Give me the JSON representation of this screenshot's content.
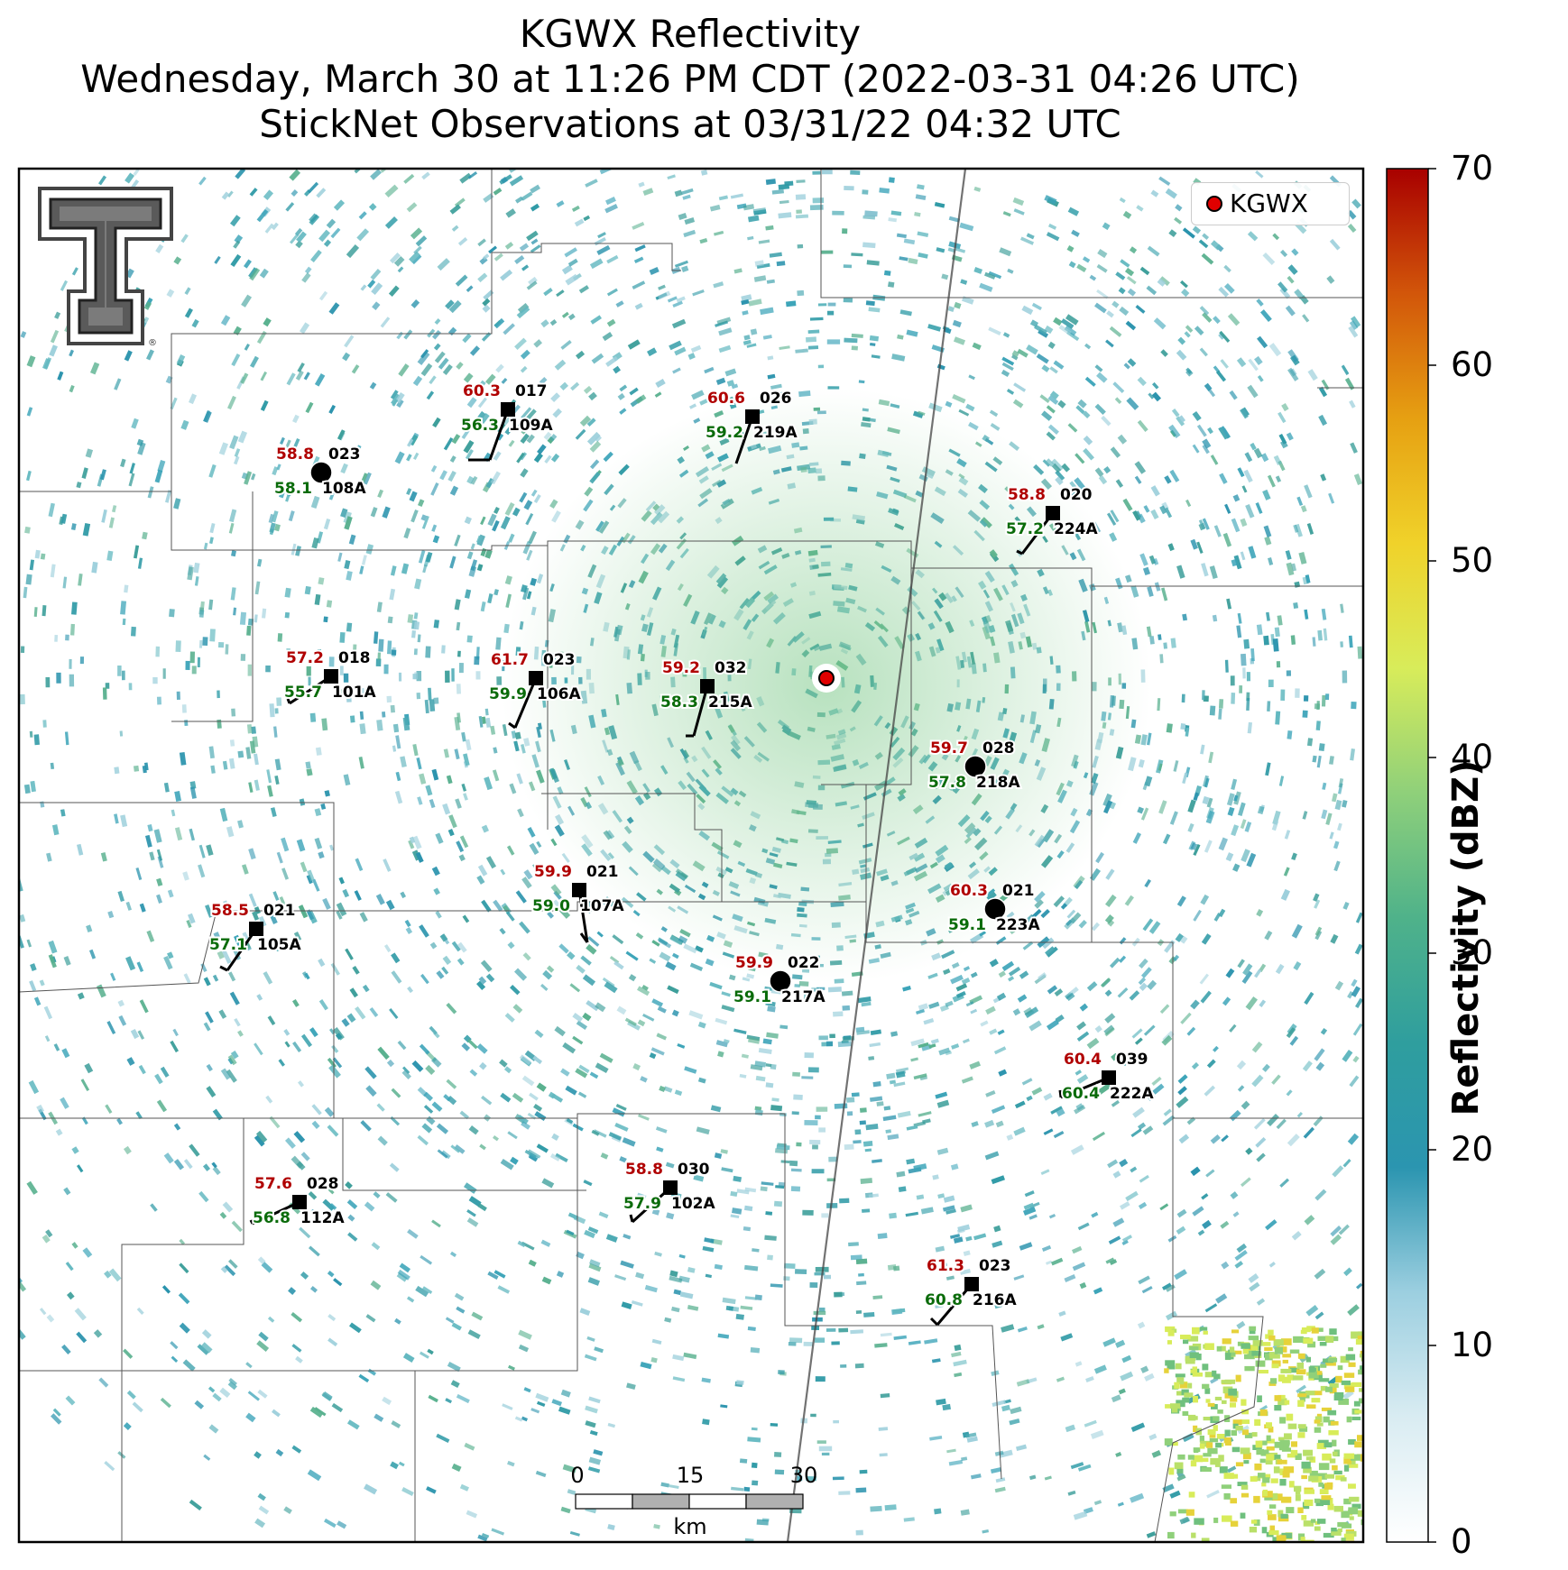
{
  "title": {
    "line1": "KGWX Reflectivity",
    "line2": "Wednesday, March 30 at 11:26 PM CDT (2022-03-31 04:26 UTC)",
    "line3": "StickNet Observations at 03/31/22 04:32 UTC"
  },
  "logo": {
    "name": "Texas Tech double-T logo"
  },
  "legend": {
    "label": "KGWX",
    "color": "#e00000"
  },
  "colorbar": {
    "label": "Reflectivity (dBZ)",
    "ticks": [
      "70",
      "60",
      "50",
      "40",
      "30",
      "20",
      "10",
      "0"
    ],
    "colors": [
      "#ffffff",
      "#d9ecf2",
      "#9ccfe0",
      "#2b95b0",
      "#2f9e9e",
      "#4fb28a",
      "#8fd07a",
      "#d8ec5a",
      "#f0d22a",
      "#e6a012",
      "#d2560a",
      "#a80000"
    ]
  },
  "scale_bar": {
    "ticks": [
      "0",
      "15",
      "30"
    ],
    "unit": "km"
  },
  "colors": {
    "temperature": "#b00000",
    "dewpoint": "#0a6b0a",
    "station": "#000000",
    "radar_echo": "#2e9fb0"
  },
  "stations": [
    {
      "id": "108A",
      "temp": "58.8",
      "dew": "58.1",
      "wind": "023",
      "marker": "circle",
      "calm": true
    },
    {
      "id": "109A",
      "temp": "60.3",
      "dew": "56.3",
      "wind": "017",
      "marker": "square",
      "calm": false
    },
    {
      "id": "219A",
      "temp": "60.6",
      "dew": "59.2",
      "wind": "026",
      "marker": "square",
      "calm": false
    },
    {
      "id": "224A",
      "temp": "58.8",
      "dew": "57.2",
      "wind": "020",
      "marker": "square",
      "calm": false
    },
    {
      "id": "101A",
      "temp": "57.2",
      "dew": "55.7",
      "wind": "018",
      "marker": "square",
      "calm": false
    },
    {
      "id": "106A",
      "temp": "61.7",
      "dew": "59.9",
      "wind": "023",
      "marker": "square",
      "calm": false
    },
    {
      "id": "215A",
      "temp": "59.2",
      "dew": "58.3",
      "wind": "032",
      "marker": "square",
      "calm": false
    },
    {
      "id": "218A",
      "temp": "59.7",
      "dew": "57.8",
      "wind": "028",
      "marker": "circle",
      "calm": true
    },
    {
      "id": "107A",
      "temp": "59.9",
      "dew": "59.0",
      "wind": "021",
      "marker": "square",
      "calm": false
    },
    {
      "id": "105A",
      "temp": "58.5",
      "dew": "57.1",
      "wind": "021",
      "marker": "square",
      "calm": false
    },
    {
      "id": "223A",
      "temp": "60.3",
      "dew": "59.1",
      "wind": "021",
      "marker": "circle",
      "calm": true
    },
    {
      "id": "217A",
      "temp": "59.9",
      "dew": "59.1",
      "wind": "022",
      "marker": "circle",
      "calm": true
    },
    {
      "id": "222A",
      "temp": "60.4",
      "dew": "60.4",
      "wind": "039",
      "marker": "square",
      "calm": false
    },
    {
      "id": "112A",
      "temp": "57.6",
      "dew": "56.8",
      "wind": "028",
      "marker": "square",
      "calm": false
    },
    {
      "id": "102A",
      "temp": "58.8",
      "dew": "57.9",
      "wind": "030",
      "marker": "square",
      "calm": false
    },
    {
      "id": "216A",
      "temp": "61.3",
      "dew": "60.8",
      "wind": "023",
      "marker": "square",
      "calm": false
    }
  ]
}
